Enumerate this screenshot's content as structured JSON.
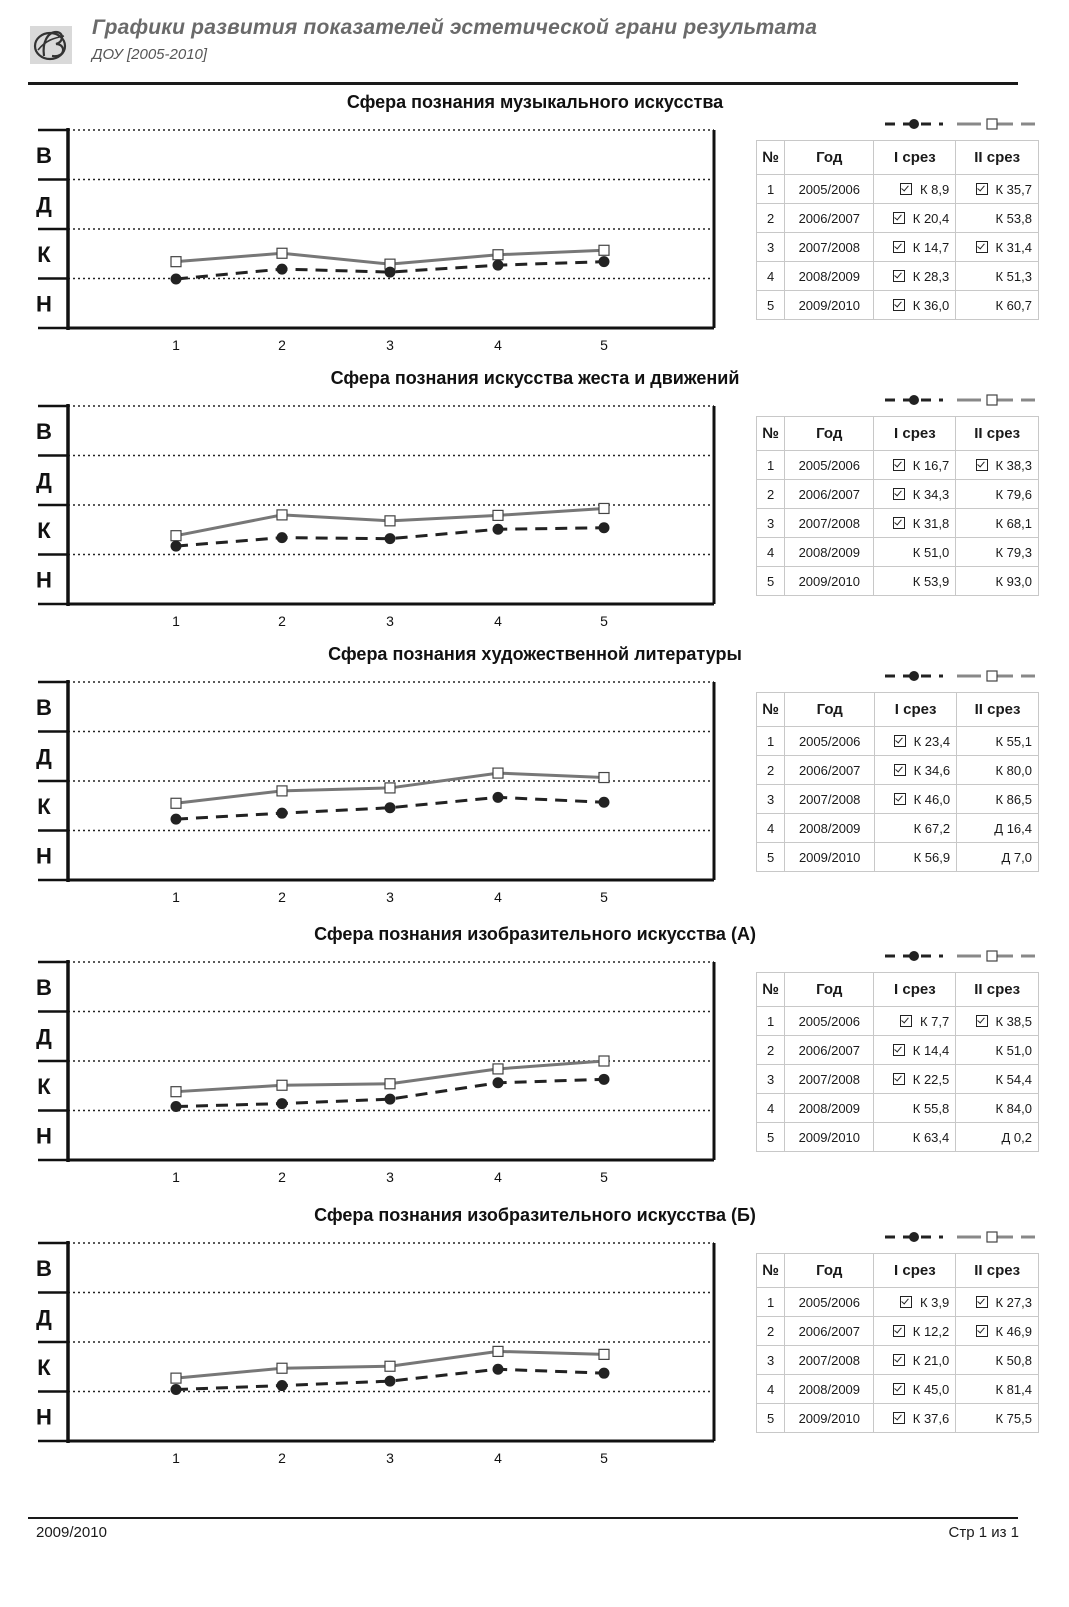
{
  "header": {
    "title": "Графики развития показателей эстетической грани результата",
    "subtitle": "ДОУ [2005-2010]"
  },
  "legend": {
    "series1_icon": "circle-marker",
    "series2_icon": "square-marker"
  },
  "table_headers": {
    "num": "№",
    "year": "Год",
    "s1": "I срез",
    "s2": "II срез"
  },
  "colors": {
    "series1": "#222222",
    "series2": "#777777",
    "grid": "#222222"
  },
  "chart_data": [
    {
      "type": "line",
      "title": "Сфера познания музыкального искусства",
      "levels": [
        "В",
        "Д",
        "К",
        "Н"
      ],
      "x": [
        "1",
        "2",
        "3",
        "4",
        "5"
      ],
      "ylim": [
        0,
        4
      ],
      "series": [
        {
          "values": [
            0.99,
            1.19,
            1.13,
            1.27,
            1.34
          ]
        },
        {
          "values": [
            1.34,
            1.51,
            1.29,
            1.48,
            1.57
          ]
        }
      ],
      "table": [
        {
          "n": "1",
          "year": "2005/2006",
          "s1": "К 8,9",
          "s1_check": true,
          "s2": "К 35,7",
          "s2_check": true
        },
        {
          "n": "2",
          "year": "2006/2007",
          "s1": "К 20,4",
          "s1_check": true,
          "s2": "К 53,8",
          "s2_check": false
        },
        {
          "n": "3",
          "year": "2007/2008",
          "s1": "К 14,7",
          "s1_check": true,
          "s2": "К 31,4",
          "s2_check": true
        },
        {
          "n": "4",
          "year": "2008/2009",
          "s1": "К 28,3",
          "s1_check": true,
          "s2": "К 51,3",
          "s2_check": false
        },
        {
          "n": "5",
          "year": "2009/2010",
          "s1": "К 36,0",
          "s1_check": true,
          "s2": "К 60,7",
          "s2_check": false
        }
      ]
    },
    {
      "type": "line",
      "title": "Сфера познания искусства жеста и движений",
      "levels": [
        "В",
        "Д",
        "К",
        "Н"
      ],
      "x": [
        "1",
        "2",
        "3",
        "4",
        "5"
      ],
      "ylim": [
        0,
        4
      ],
      "series": [
        {
          "values": [
            1.17,
            1.34,
            1.32,
            1.51,
            1.54
          ]
        },
        {
          "values": [
            1.38,
            1.8,
            1.68,
            1.79,
            1.93
          ]
        }
      ],
      "table": [
        {
          "n": "1",
          "year": "2005/2006",
          "s1": "К 16,7",
          "s1_check": true,
          "s2": "К 38,3",
          "s2_check": true
        },
        {
          "n": "2",
          "year": "2006/2007",
          "s1": "К 34,3",
          "s1_check": true,
          "s2": "К 79,6",
          "s2_check": false
        },
        {
          "n": "3",
          "year": "2007/2008",
          "s1": "К 31,8",
          "s1_check": true,
          "s2": "К 68,1",
          "s2_check": false
        },
        {
          "n": "4",
          "year": "2008/2009",
          "s1": "К 51,0",
          "s1_check": false,
          "s2": "К 79,3",
          "s2_check": false
        },
        {
          "n": "5",
          "year": "2009/2010",
          "s1": "К 53,9",
          "s1_check": false,
          "s2": "К 93,0",
          "s2_check": false
        }
      ]
    },
    {
      "type": "line",
      "title": "Сфера познания художественной литературы",
      "levels": [
        "В",
        "Д",
        "К",
        "Н"
      ],
      "x": [
        "1",
        "2",
        "3",
        "4",
        "5"
      ],
      "ylim": [
        0,
        4
      ],
      "series": [
        {
          "values": [
            1.23,
            1.35,
            1.46,
            1.67,
            1.57
          ]
        },
        {
          "values": [
            1.55,
            1.8,
            1.86,
            2.16,
            2.07
          ]
        }
      ],
      "table": [
        {
          "n": "1",
          "year": "2005/2006",
          "s1": "К 23,4",
          "s1_check": true,
          "s2": "К 55,1",
          "s2_check": false
        },
        {
          "n": "2",
          "year": "2006/2007",
          "s1": "К 34,6",
          "s1_check": true,
          "s2": "К 80,0",
          "s2_check": false
        },
        {
          "n": "3",
          "year": "2007/2008",
          "s1": "К 46,0",
          "s1_check": true,
          "s2": "К 86,5",
          "s2_check": false
        },
        {
          "n": "4",
          "year": "2008/2009",
          "s1": "К 67,2",
          "s1_check": false,
          "s2": "Д 16,4",
          "s2_check": false
        },
        {
          "n": "5",
          "year": "2009/2010",
          "s1": "К 56,9",
          "s1_check": false,
          "s2": "Д 7,0",
          "s2_check": false
        }
      ]
    },
    {
      "type": "line",
      "title": "Сфера познания изобразительного искусства (А)",
      "levels": [
        "В",
        "Д",
        "К",
        "Н"
      ],
      "x": [
        "1",
        "2",
        "3",
        "4",
        "5"
      ],
      "ylim": [
        0,
        4
      ],
      "series": [
        {
          "values": [
            1.08,
            1.14,
            1.23,
            1.56,
            1.63
          ]
        },
        {
          "values": [
            1.38,
            1.51,
            1.54,
            1.84,
            2.0
          ]
        }
      ],
      "table": [
        {
          "n": "1",
          "year": "2005/2006",
          "s1": "К 7,7",
          "s1_check": true,
          "s2": "К 38,5",
          "s2_check": true
        },
        {
          "n": "2",
          "year": "2006/2007",
          "s1": "К 14,4",
          "s1_check": true,
          "s2": "К 51,0",
          "s2_check": false
        },
        {
          "n": "3",
          "year": "2007/2008",
          "s1": "К 22,5",
          "s1_check": true,
          "s2": "К 54,4",
          "s2_check": false
        },
        {
          "n": "4",
          "year": "2008/2009",
          "s1": "К 55,8",
          "s1_check": false,
          "s2": "К 84,0",
          "s2_check": false
        },
        {
          "n": "5",
          "year": "2009/2010",
          "s1": "К 63,4",
          "s1_check": false,
          "s2": "Д 0,2",
          "s2_check": false
        }
      ]
    },
    {
      "type": "line",
      "title": "Сфера познания изобразительного искусства (Б)",
      "levels": [
        "В",
        "Д",
        "К",
        "Н"
      ],
      "x": [
        "1",
        "2",
        "3",
        "4",
        "5"
      ],
      "ylim": [
        0,
        4
      ],
      "series": [
        {
          "values": [
            1.04,
            1.12,
            1.21,
            1.45,
            1.37
          ]
        },
        {
          "values": [
            1.27,
            1.47,
            1.51,
            1.81,
            1.75
          ]
        }
      ],
      "table": [
        {
          "n": "1",
          "year": "2005/2006",
          "s1": "К 3,9",
          "s1_check": true,
          "s2": "К 27,3",
          "s2_check": true
        },
        {
          "n": "2",
          "year": "2006/2007",
          "s1": "К 12,2",
          "s1_check": true,
          "s2": "К 46,9",
          "s2_check": true
        },
        {
          "n": "3",
          "year": "2007/2008",
          "s1": "К 21,0",
          "s1_check": true,
          "s2": "К 50,8",
          "s2_check": false
        },
        {
          "n": "4",
          "year": "2008/2009",
          "s1": "К 45,0",
          "s1_check": true,
          "s2": "К 81,4",
          "s2_check": false
        },
        {
          "n": "5",
          "year": "2009/2010",
          "s1": "К 37,6",
          "s1_check": true,
          "s2": "К 75,5",
          "s2_check": false
        }
      ]
    }
  ],
  "footer": {
    "left": "2009/2010",
    "right": "Стр 1 из 1"
  }
}
